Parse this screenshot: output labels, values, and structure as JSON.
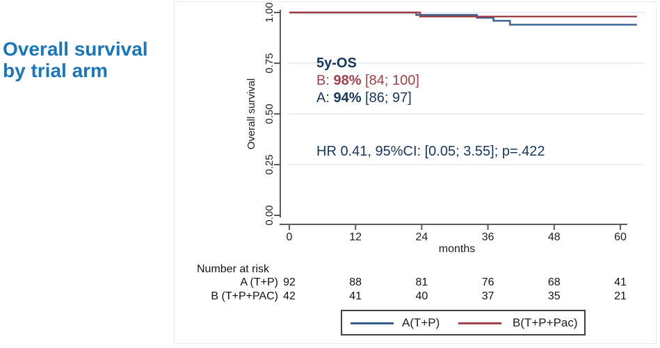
{
  "title": {
    "line1": "Overall survival",
    "line2": "by trial arm",
    "color": "#1a76bb"
  },
  "chart_data": {
    "type": "line",
    "subtype": "kaplan-meier-step",
    "xlabel": "months",
    "ylabel": "Overall survival",
    "x_ticks": [
      0,
      12,
      24,
      36,
      48,
      60
    ],
    "y_ticks": [
      0.0,
      0.25,
      0.5,
      0.75,
      1.0
    ],
    "y_tick_labels": [
      "0.00",
      "0.25",
      "0.50",
      "0.75",
      "1.00"
    ],
    "xlim": [
      0,
      63
    ],
    "ylim": [
      0,
      1
    ],
    "grid": "horizontal",
    "legend_position": "bottom",
    "series": [
      {
        "name": "A(T+P)",
        "color": "#325d8a",
        "steps": [
          [
            0,
            1.0
          ],
          [
            23,
            1.0
          ],
          [
            23,
            0.988
          ],
          [
            34,
            0.988
          ],
          [
            34,
            0.974
          ],
          [
            37,
            0.974
          ],
          [
            37,
            0.959
          ],
          [
            40,
            0.959
          ],
          [
            40,
            0.94
          ],
          [
            63,
            0.94
          ]
        ]
      },
      {
        "name": "B(T+P+Pac)",
        "color": "#a0414a",
        "steps": [
          [
            0,
            1.0
          ],
          [
            23.7,
            1.0
          ],
          [
            23.7,
            0.98
          ],
          [
            63,
            0.98
          ]
        ]
      }
    ]
  },
  "annotations": {
    "heading": "5y-OS",
    "b_prefix": "B: ",
    "b_value": "98%",
    "b_suffix": " [84; 100]",
    "a_prefix": "A: ",
    "a_value": "94%",
    "a_suffix": " [86; 97]",
    "hr_line": "HR 0.41, 95%CI: [0.05; 3.55]; p=.422",
    "navy": "#17365d",
    "dark_red": "#a0414a"
  },
  "risk_table": {
    "heading": "Number at risk",
    "rows": [
      {
        "label": "A (T+P)",
        "values": [
          "92",
          "88",
          "81",
          "76",
          "68",
          "41"
        ]
      },
      {
        "label": "B (T+P+PAC)",
        "values": [
          "42",
          "41",
          "40",
          "37",
          "35",
          "21"
        ]
      }
    ]
  },
  "legend": {
    "items": [
      {
        "label": "A(T+P)",
        "color": "#325d8a"
      },
      {
        "label": "B(T+P+Pac)",
        "color": "#a0414a"
      }
    ]
  },
  "style_colors": {
    "axis": "#5a5a5a",
    "grid": "#e9f0f5",
    "panel_border": "#e4edee"
  }
}
